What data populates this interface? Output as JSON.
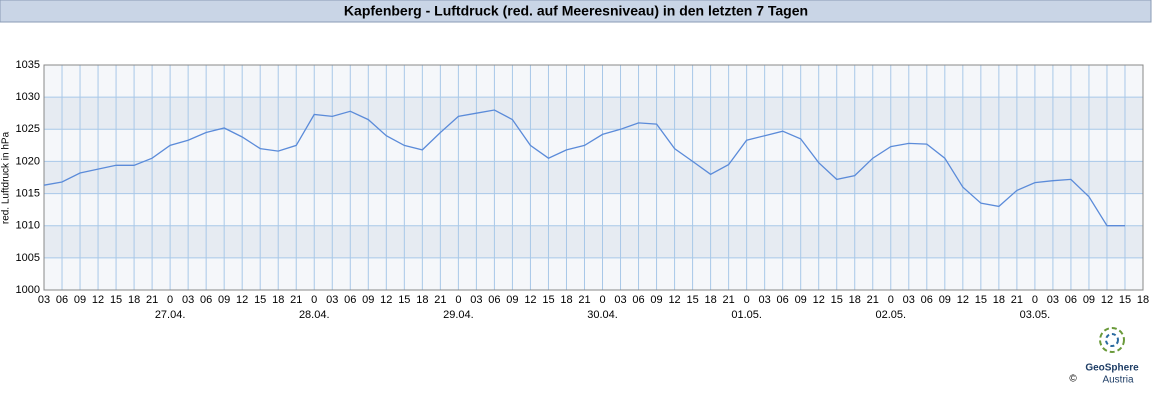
{
  "chart_data": {
    "type": "line",
    "title": "Kapfenberg - Luftdruck (red. auf Meeresniveau) in den letzten 7 Tagen",
    "y_label": "red. Luftdruck in hPa",
    "categories": [
      "03",
      "06",
      "09",
      "12",
      "15",
      "18",
      "21",
      "0",
      "03",
      "06",
      "09",
      "12",
      "15",
      "18",
      "21",
      "0",
      "03",
      "06",
      "09",
      "12",
      "15",
      "18",
      "21",
      "0",
      "03",
      "06",
      "09",
      "12",
      "15",
      "18",
      "21",
      "0",
      "03",
      "06",
      "09",
      "12",
      "15",
      "18",
      "21",
      "0",
      "03",
      "06",
      "09",
      "12",
      "15",
      "18",
      "21",
      "0",
      "03",
      "06",
      "09",
      "12",
      "15",
      "18",
      "21",
      "0",
      "03",
      "06",
      "09",
      "12",
      "15",
      "18"
    ],
    "dates": [
      null,
      null,
      null,
      null,
      null,
      null,
      null,
      "27.04.",
      null,
      null,
      null,
      null,
      null,
      null,
      null,
      "28.04.",
      null,
      null,
      null,
      null,
      null,
      null,
      null,
      "29.04.",
      null,
      null,
      null,
      null,
      null,
      null,
      null,
      "30.04.",
      null,
      null,
      null,
      null,
      null,
      null,
      null,
      "01.05.",
      null,
      null,
      null,
      null,
      null,
      null,
      null,
      "02.05.",
      null,
      null,
      null,
      null,
      null,
      null,
      null,
      "03.05.",
      null,
      null,
      null,
      null,
      null,
      null
    ],
    "values": [
      1016.3,
      1016.8,
      1018.2,
      1018.8,
      1019.4,
      1019.4,
      1020.5,
      1022.5,
      1023.3,
      1024.5,
      1025.2,
      1023.8,
      1022,
      1021.6,
      1022.5,
      1027.3,
      1027,
      1027.8,
      1026.5,
      1024,
      1022.5,
      1021.8,
      1024.5,
      1027,
      1027.5,
      1028,
      1026.5,
      1022.5,
      1020.5,
      1021.8,
      1022.5,
      1024.2,
      1025,
      1026,
      1025.8,
      1022,
      1020,
      1018,
      1019.5,
      1023.3,
      1024,
      1024.7,
      1023.5,
      1019.8,
      1017.2,
      1017.8,
      1020.5,
      1022.3,
      1022.8,
      1022.7,
      1020.5,
      1016,
      1013.5,
      1013,
      1015.5,
      1016.7,
      1017,
      1017.2,
      1014.5,
      1010,
      1010,
      null
    ],
    "color": "#5b8bd9",
    "ylim": [
      1000,
      1035
    ],
    "yticks": [
      1000,
      1005,
      1010,
      1015,
      1020,
      1025,
      1030,
      1035
    ],
    "grid": true,
    "logo": {
      "name": "GeoSphere",
      "sub": "Austria",
      "copyright": "©"
    }
  }
}
